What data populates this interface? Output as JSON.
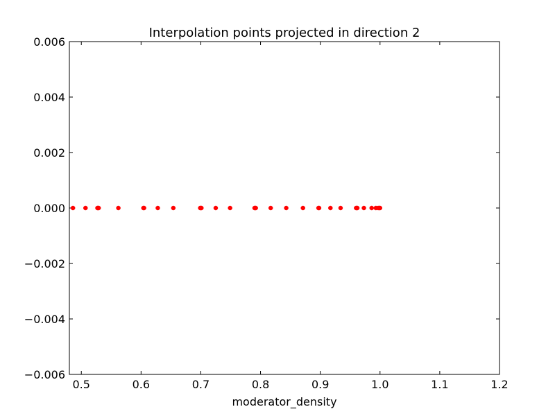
{
  "chart_data": {
    "type": "scatter",
    "title": "Interpolation points projected in direction 2",
    "xlabel": "moderator_density",
    "ylabel": "",
    "xlim": [
      0.48,
      1.2
    ],
    "ylim": [
      -0.006,
      0.006
    ],
    "x_ticks": [
      0.5,
      0.6,
      0.7,
      0.8,
      0.9,
      1.0,
      1.1,
      1.2
    ],
    "x_tick_labels": [
      "0.5",
      "0.6",
      "0.7",
      "0.8",
      "0.9",
      "1.0",
      "1.1",
      "1.2"
    ],
    "y_ticks": [
      0.006,
      0.004,
      0.002,
      0.0,
      -0.002,
      -0.004,
      -0.006
    ],
    "y_tick_labels": [
      "0.006",
      "0.004",
      "0.002",
      "0.000",
      "−0.002",
      "−0.004",
      "−0.006"
    ],
    "grid": false,
    "marker_color": "#ff0000",
    "series": [
      {
        "x": [
          0.486,
          0.507,
          0.527,
          0.528,
          0.529,
          0.562,
          0.604,
          0.605,
          0.628,
          0.654,
          0.699,
          0.7,
          0.701,
          0.725,
          0.749,
          0.79,
          0.791,
          0.792,
          0.817,
          0.843,
          0.871,
          0.897,
          0.898,
          0.917,
          0.934,
          0.96,
          0.961,
          0.962,
          0.973,
          0.986,
          0.993,
          0.997,
          0.999,
          1.0
        ],
        "y": [
          0,
          0,
          0,
          0,
          0,
          0,
          0,
          0,
          0,
          0,
          0,
          0,
          0,
          0,
          0,
          0,
          0,
          0,
          0,
          0,
          0,
          0,
          0,
          0,
          0,
          0,
          0,
          0,
          0,
          0,
          0,
          0,
          0,
          0
        ]
      }
    ]
  }
}
